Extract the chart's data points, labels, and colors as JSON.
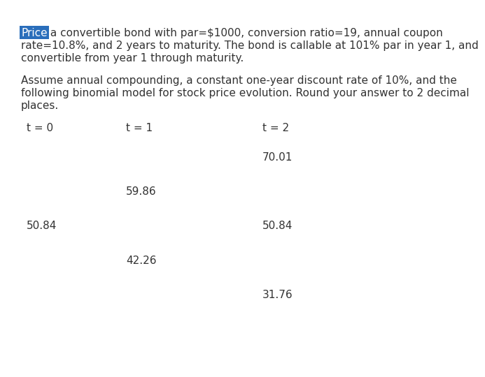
{
  "bg_color": "#ffffff",
  "text_color": "#333333",
  "highlight_word": "Price",
  "highlight_bg": "#2a6ebb",
  "highlight_fg": "#ffffff",
  "line1_after": " a convertible bond with par=$1000, conversion ratio=19, annual coupon",
  "line2": "rate=10.8%, and 2 years to maturity. The bond is callable at 101% par in year 1, and",
  "line3": "convertible from year 1 through maturity.",
  "line4": "Assume annual compounding, a constant one-year discount rate of 10%, and the",
  "line5": "following binomial model for stock price evolution. Round your answer to 2 decimal",
  "line6": "places.",
  "t0_label": "t = 0",
  "t1_label": "t = 1",
  "t2_label": "t = 2",
  "t0_val": "50.84",
  "t1_up": "59.86",
  "t1_dn": "42.26",
  "t2_uu": "70.01",
  "t2_ud": "50.84",
  "t2_dd": "31.76",
  "font_size_text": 11.0,
  "font_size_tree": 11.0,
  "font_family": "DejaVu Sans"
}
